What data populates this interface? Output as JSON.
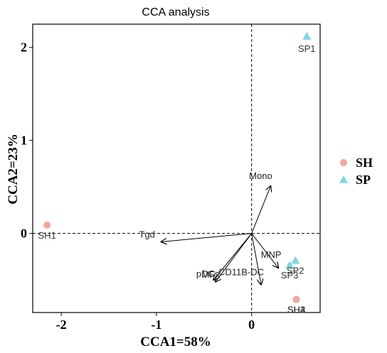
{
  "chart_data": {
    "type": "scatter",
    "title": "CCA analysis",
    "xlabel": "CCA1=58%",
    "ylabel": "CCA2=23%",
    "xlim": [
      -2.3,
      0.72
    ],
    "ylim": [
      -0.85,
      2.25
    ],
    "xticks": [
      -2,
      -1,
      0
    ],
    "yticks": [
      0,
      1,
      2
    ],
    "reference_lines": {
      "x": 0,
      "y": 0,
      "style": "dashed"
    },
    "grid": false,
    "legend_position": "right",
    "series": [
      {
        "name": "SH",
        "color": "#F4A6A0",
        "marker": "circle",
        "points": [
          {
            "label": "SH1",
            "x": -2.15,
            "y": 0.09
          },
          {
            "label": "SH2",
            "x": 0.47,
            "y": -0.71
          },
          {
            "label": "SH3",
            "x": 0.47,
            "y": -0.71
          },
          {
            "label": "SH4",
            "x": 0.47,
            "y": -0.71
          }
        ]
      },
      {
        "name": "SP",
        "color": "#7DD8E0",
        "marker": "triangle",
        "points": [
          {
            "label": "SP1",
            "x": 0.58,
            "y": 2.12
          },
          {
            "label": "SP2",
            "x": 0.46,
            "y": -0.29
          },
          {
            "label": "SP3",
            "x": 0.4,
            "y": -0.34
          }
        ]
      }
    ],
    "vectors": [
      {
        "label": "Mono",
        "x": 0.2,
        "y": 0.51
      },
      {
        "label": "Tgd",
        "x": -0.95,
        "y": -0.09
      },
      {
        "label": "pDCs",
        "x": -0.4,
        "y": -0.5
      },
      {
        "label": "MF",
        "x": -0.38,
        "y": -0.52
      },
      {
        "label": "CD11B-DC",
        "x": 0.1,
        "y": -0.55
      },
      {
        "label": "MNP",
        "x": 0.28,
        "y": -0.37
      }
    ]
  }
}
